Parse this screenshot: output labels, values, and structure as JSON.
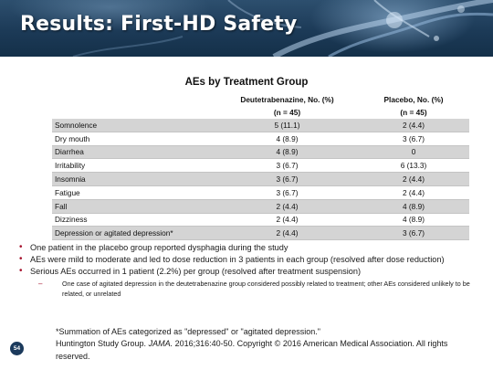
{
  "slide": {
    "title": "Results: First-HD Safety",
    "page_number": "54"
  },
  "table": {
    "title": "AEs by Treatment Group",
    "columns": [
      {
        "label": "",
        "n": ""
      },
      {
        "label": "Deutetrabenazine, No. (%)",
        "n": "(n = 45)"
      },
      {
        "label": "Placebo, No. (%)",
        "n": "(n = 45)"
      }
    ],
    "rows": [
      {
        "event": "Somnolence",
        "deutetrabenazine": "5 (11.1)",
        "placebo": "2 (4.4)"
      },
      {
        "event": "Dry mouth",
        "deutetrabenazine": "4 (8.9)",
        "placebo": "3 (6.7)"
      },
      {
        "event": "Diarrhea",
        "deutetrabenazine": "4 (8.9)",
        "placebo": "0"
      },
      {
        "event": "Irritability",
        "deutetrabenazine": "3 (6.7)",
        "placebo": "6 (13.3)"
      },
      {
        "event": "Insomnia",
        "deutetrabenazine": "3 (6.7)",
        "placebo": "2 (4.4)"
      },
      {
        "event": "Fatigue",
        "deutetrabenazine": "3 (6.7)",
        "placebo": "2 (4.4)"
      },
      {
        "event": "Fall",
        "deutetrabenazine": "2 (4.4)",
        "placebo": "4 (8.9)"
      },
      {
        "event": "Dizziness",
        "deutetrabenazine": "2 (4.4)",
        "placebo": "4 (8.9)"
      },
      {
        "event": "Depression or agitated depression*",
        "deutetrabenazine": "2 (4.4)",
        "placebo": "3 (6.7)"
      }
    ]
  },
  "bullets": [
    "One patient in the placebo group reported dysphagia during the study",
    "AEs were mild to moderate and led to dose reduction in 3 patients in each group (resolved after dose reduction)",
    "Serious AEs occurred in 1 patient (2.2%) per group (resolved after treatment suspension)"
  ],
  "sub_bullet": "One case of agitated depression in the deutetrabenazine group considered possibly related to treatment; other AEs considered unlikely to be related, or unrelated",
  "footnote": {
    "line1": "*Summation of AEs categorized as \"depressed\" or \"agitated depression.\"",
    "source_prefix": "Huntington Study Group.",
    "source_journal": "JAMA.",
    "source_rest": "2016;316:40-50. Copyright © 2016 American Medical Association. All rights reserved."
  },
  "colors": {
    "banner": "#1c3a57",
    "table_stripe": "#d4d4d4",
    "bullet_accent": "#a6122d",
    "page_badge": "#1b3a5c"
  }
}
